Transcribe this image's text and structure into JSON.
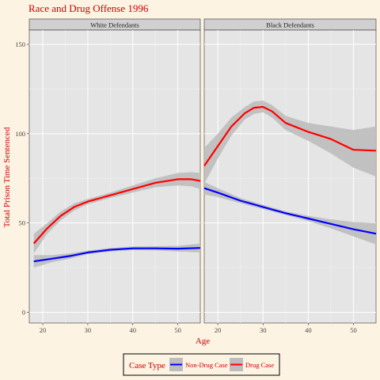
{
  "chart_data": {
    "type": "line",
    "title": "Race and Drug Offense 1996",
    "xlabel": "Age",
    "ylabel": "Total Prison Time Sentenced",
    "xlim": [
      17,
      55
    ],
    "ylim": [
      -6,
      158
    ],
    "x_ticks": [
      20,
      30,
      40,
      50
    ],
    "y_ticks": [
      0,
      50,
      100,
      150
    ],
    "grid": true,
    "legend_position": "bottom",
    "legend_title": "Case Type",
    "legend_entries": [
      "Non-Drug Case",
      "Drug Case"
    ],
    "colors": {
      "background": "#fdf3e3",
      "panel": "#e5e5e5",
      "strip": "#d0d0d0",
      "band": "#bdbdbd",
      "Non-Drug Case": "#0000ff",
      "Drug Case": "#ff0000",
      "title_text": "#cc0000"
    },
    "panels": [
      {
        "label": "White Defendants",
        "series": [
          {
            "name": "Non-Drug Case",
            "points": [
              [
                18,
                28.5
              ],
              [
                22,
                30
              ],
              [
                26,
                31.5
              ],
              [
                30,
                33.5
              ],
              [
                35,
                35
              ],
              [
                40,
                35.8
              ],
              [
                45,
                35.8
              ],
              [
                50,
                35.6
              ],
              [
                55,
                36
              ]
            ],
            "lower": [
              [
                18,
                25
              ],
              [
                22,
                28
              ],
              [
                26,
                30
              ],
              [
                30,
                32.5
              ],
              [
                35,
                34
              ],
              [
                40,
                34.8
              ],
              [
                45,
                34.6
              ],
              [
                50,
                34
              ],
              [
                55,
                33.5
              ]
            ],
            "upper": [
              [
                18,
                32
              ],
              [
                22,
                32
              ],
              [
                26,
                33
              ],
              [
                30,
                34.5
              ],
              [
                35,
                36
              ],
              [
                40,
                36.8
              ],
              [
                45,
                37
              ],
              [
                50,
                37.2
              ],
              [
                55,
                38.5
              ]
            ]
          },
          {
            "name": "Drug Case",
            "points": [
              [
                18,
                38.5
              ],
              [
                21,
                47
              ],
              [
                24,
                54
              ],
              [
                27,
                59
              ],
              [
                30,
                62
              ],
              [
                35,
                65.5
              ],
              [
                40,
                69
              ],
              [
                45,
                72.5
              ],
              [
                50,
                74.5
              ],
              [
                53,
                74.5
              ],
              [
                55,
                73.5
              ]
            ],
            "lower": [
              [
                18,
                33
              ],
              [
                21,
                44
              ],
              [
                24,
                51.5
              ],
              [
                27,
                57
              ],
              [
                30,
                60.5
              ],
              [
                35,
                64
              ],
              [
                40,
                67
              ],
              [
                45,
                70
              ],
              [
                50,
                71
              ],
              [
                53,
                70.5
              ],
              [
                55,
                69
              ]
            ],
            "upper": [
              [
                18,
                44
              ],
              [
                21,
                50
              ],
              [
                24,
                56.5
              ],
              [
                27,
                61
              ],
              [
                30,
                63.5
              ],
              [
                35,
                67
              ],
              [
                40,
                71
              ],
              [
                45,
                75
              ],
              [
                50,
                78
              ],
              [
                53,
                78.5
              ],
              [
                55,
                78
              ]
            ]
          }
        ]
      },
      {
        "label": "Black Defendants",
        "series": [
          {
            "name": "Non-Drug Case",
            "points": [
              [
                17,
                69.5
              ],
              [
                20,
                67
              ],
              [
                25,
                62.5
              ],
              [
                30,
                59
              ],
              [
                35,
                55.5
              ],
              [
                40,
                52.5
              ],
              [
                45,
                49.5
              ],
              [
                50,
                46.5
              ],
              [
                55,
                44
              ]
            ],
            "lower": [
              [
                17,
                66
              ],
              [
                20,
                64.5
              ],
              [
                25,
                61
              ],
              [
                30,
                57.8
              ],
              [
                35,
                54.5
              ],
              [
                40,
                51
              ],
              [
                45,
                47
              ],
              [
                50,
                42.5
              ],
              [
                55,
                38
              ]
            ],
            "upper": [
              [
                17,
                73
              ],
              [
                20,
                69.5
              ],
              [
                25,
                64
              ],
              [
                30,
                60.2
              ],
              [
                35,
                56.5
              ],
              [
                40,
                54
              ],
              [
                45,
                52
              ],
              [
                50,
                50.5
              ],
              [
                55,
                50
              ]
            ]
          },
          {
            "name": "Drug Case",
            "points": [
              [
                17,
                82
              ],
              [
                20,
                93
              ],
              [
                23,
                104
              ],
              [
                26,
                111.5
              ],
              [
                28,
                114.5
              ],
              [
                30,
                115
              ],
              [
                32,
                112.5
              ],
              [
                35,
                106
              ],
              [
                40,
                101
              ],
              [
                45,
                97
              ],
              [
                50,
                91
              ],
              [
                55,
                90.5
              ]
            ],
            "lower": [
              [
                17,
                72
              ],
              [
                20,
                86
              ],
              [
                23,
                99
              ],
              [
                26,
                108
              ],
              [
                28,
                111
              ],
              [
                30,
                112
              ],
              [
                32,
                109
              ],
              [
                35,
                102
              ],
              [
                40,
                96
              ],
              [
                45,
                89
              ],
              [
                50,
                81
              ],
              [
                55,
                76
              ]
            ],
            "upper": [
              [
                17,
                92
              ],
              [
                20,
                100
              ],
              [
                23,
                109
              ],
              [
                26,
                115
              ],
              [
                28,
                118
              ],
              [
                30,
                118.5
              ],
              [
                32,
                116
              ],
              [
                35,
                110
              ],
              [
                40,
                106
              ],
              [
                45,
                104
              ],
              [
                50,
                102
              ],
              [
                55,
                104
              ]
            ]
          }
        ]
      }
    ]
  }
}
